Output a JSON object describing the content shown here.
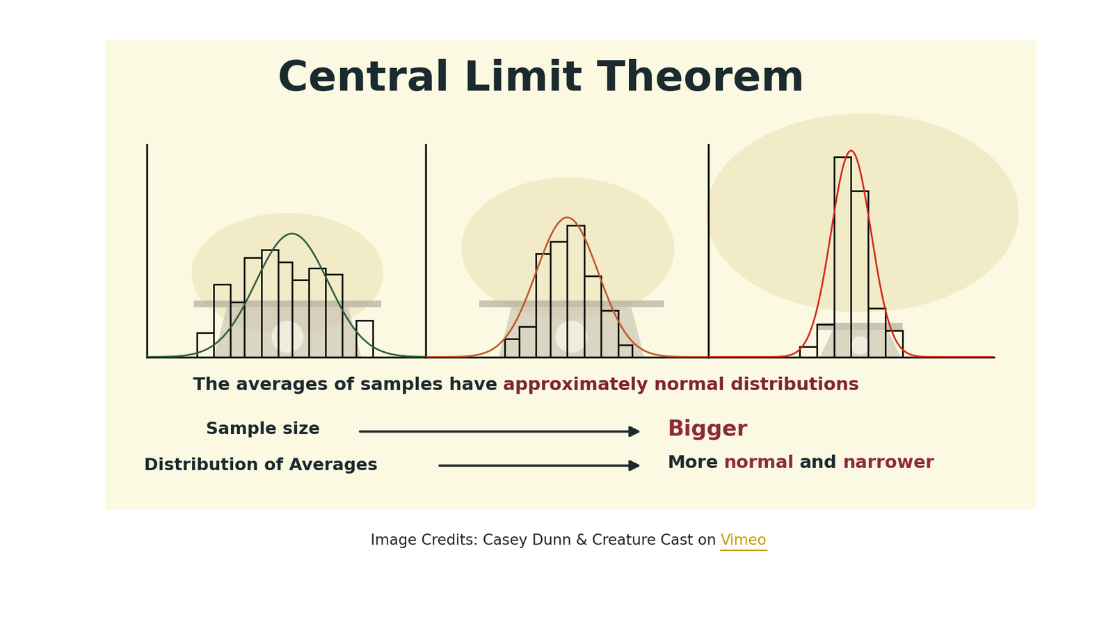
{
  "title": {
    "text": "Central Limit Theorem",
    "color": "#1b2a2e"
  },
  "chart_data": [
    {
      "type": "histogram",
      "bins": [
        18,
        24,
        30,
        35,
        41,
        47,
        52,
        58,
        64,
        70,
        75,
        81
      ],
      "counts": [
        12,
        36,
        27,
        49,
        53,
        47,
        38,
        44,
        41,
        0,
        18
      ],
      "color": "#111111",
      "xlim": [
        0,
        100
      ],
      "ylim": [
        0,
        105
      ],
      "tick_labels": false,
      "normal_curve": {
        "mean": 52,
        "sd": 13,
        "peak": 61,
        "color": "#2f5d3a"
      }
    },
    {
      "type": "histogram",
      "bins": [
        28,
        33,
        39,
        44,
        50,
        56,
        62,
        68,
        73
      ],
      "counts": [
        9,
        15,
        51,
        57,
        65,
        40,
        23,
        6
      ],
      "color": "#111111",
      "xlim": [
        0,
        100
      ],
      "ylim": [
        0,
        105
      ],
      "tick_labels": false,
      "normal_curve": {
        "mean": 50,
        "sd": 11,
        "peak": 69,
        "color": "#c0562b"
      }
    },
    {
      "type": "histogram",
      "bins": [
        32,
        38,
        44,
        50,
        56,
        62,
        68
      ],
      "counts": [
        5,
        16,
        99,
        82,
        24,
        13
      ],
      "color": "#111111",
      "xlim": [
        0,
        100
      ],
      "ylim": [
        0,
        105
      ],
      "tick_labels": false,
      "normal_curve": {
        "mean": 50,
        "sd": 7,
        "peak": 102,
        "color": "#d42a1e"
      }
    }
  ],
  "statement": [
    {
      "text": "The averages of samples have",
      "color": "#1b2a2e"
    },
    {
      "text": "approximately normal distributions",
      "color": "#7e2433"
    }
  ],
  "rows": [
    {
      "label": {
        "text": "Sample size",
        "color": "#1b2a2e"
      },
      "result": [
        {
          "text": "Bigger",
          "color": "#8b2c38"
        }
      ]
    },
    {
      "label": {
        "text": "Distribution of Averages",
        "color": "#1b2a2e"
      },
      "result": [
        {
          "text": "More",
          "color": "#1b2a2e"
        },
        {
          "text": "normal",
          "color": "#8b2c38"
        },
        {
          "text": "and",
          "color": "#1b2a2e"
        },
        {
          "text": "narrower",
          "color": "#8b2c38"
        }
      ]
    }
  ],
  "credit": [
    {
      "text": "Image Credits: Casey Dunn & Creature Cast on",
      "color": "#222222"
    },
    {
      "text": "Vimeo",
      "color": "#c49a00"
    }
  ]
}
